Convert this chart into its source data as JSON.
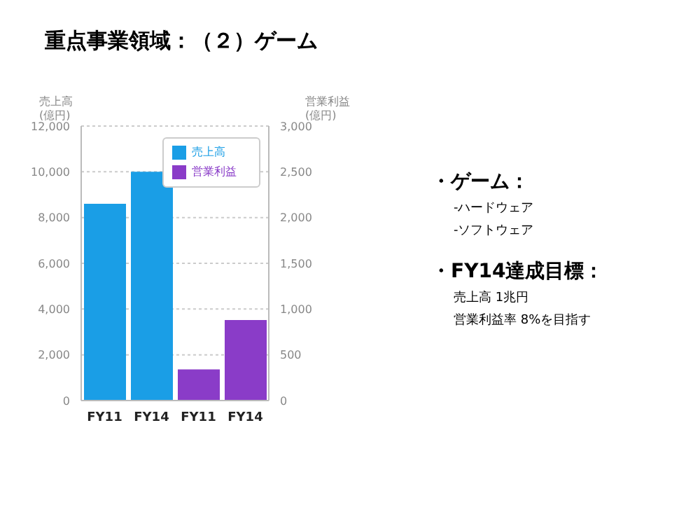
{
  "chart_data": {
    "type": "bar",
    "title": "重点事業領域：（２）ゲーム",
    "categories": [
      "FY11",
      "FY14",
      "FY11",
      "FY14"
    ],
    "series": [
      {
        "name": "売上高",
        "color": "#1a9ee6",
        "values": [
          8600,
          10000,
          null,
          null
        ]
      },
      {
        "name": "営業利益",
        "color": "#8a3cc8",
        "values": [
          null,
          null,
          340,
          880
        ],
        "axis": "y2"
      }
    ],
    "ylabel": "売上高\n(億円)",
    "y2label": "営業利益\n(億円)",
    "ylim": [
      0,
      12000
    ],
    "yticks": [
      0,
      {
        "value": 2000,
        "label": "2,000"
      },
      {
        "value": 4000,
        "label": "4,000"
      },
      {
        "value": 6000,
        "label": "6,000"
      },
      {
        "value": 8000,
        "label": "8,000"
      },
      {
        "value": 10000,
        "label": "10,000"
      },
      {
        "value": 12000,
        "label": "12,000"
      }
    ],
    "y2lim": [
      0,
      3000
    ],
    "y2ticks": [
      0,
      500,
      {
        "value": 1000,
        "label": "1,000"
      },
      {
        "value": 1500,
        "label": "1,500"
      },
      {
        "value": 2000,
        "label": "2,000"
      },
      {
        "value": 2500,
        "label": "2,500"
      },
      {
        "value": 3000,
        "label": "3,000"
      }
    ],
    "grid": "y",
    "legend": "top right",
    "annotations": [
      "・ゲーム：",
      "-ハードウェア",
      "-ソフトウェア",
      "・FY14達成目標：",
      "売上高 1兆円",
      "営業利益率 8%を目指す"
    ]
  }
}
